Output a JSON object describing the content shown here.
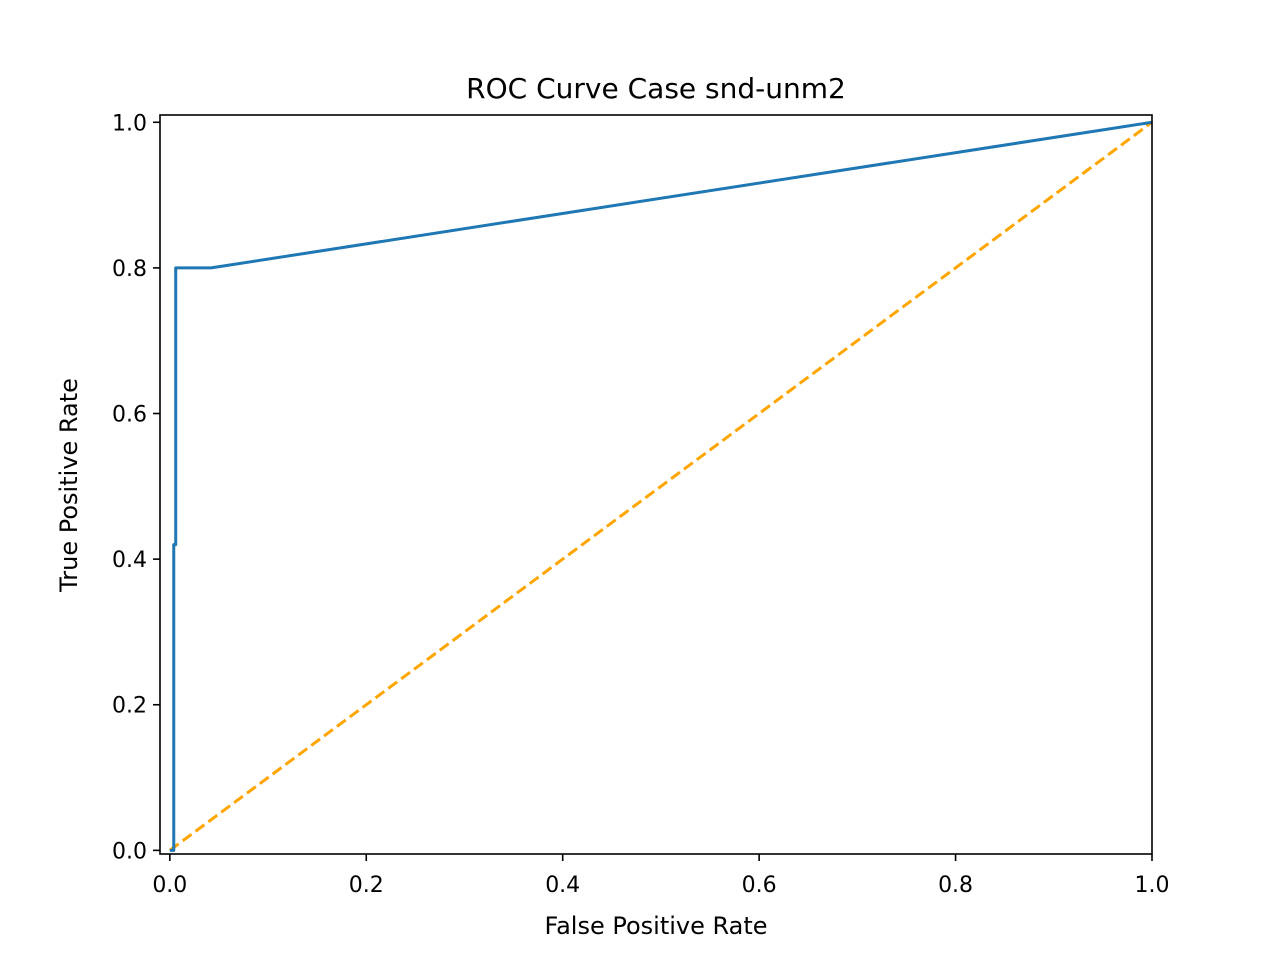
{
  "chart_data": {
    "type": "line",
    "title": "ROC Curve Case snd-unm2",
    "xlabel": "False Positive Rate",
    "ylabel": "True Positive Rate",
    "xlim": [
      -0.01,
      1.0
    ],
    "ylim": [
      -0.005,
      1.01
    ],
    "xticks": [
      0.0,
      0.2,
      0.4,
      0.6,
      0.8,
      1.0
    ],
    "xtick_labels": [
      "0.0",
      "0.2",
      "0.4",
      "0.6",
      "0.8",
      "1.0"
    ],
    "yticks": [
      0.0,
      0.2,
      0.4,
      0.6,
      0.8,
      1.0
    ],
    "ytick_labels": [
      "0.0",
      "0.2",
      "0.4",
      "0.6",
      "0.8",
      "1.0"
    ],
    "grid": false,
    "series": [
      {
        "name": "ROC curve",
        "color": "#1f77b4",
        "style": "solid",
        "x": [
          0.0,
          0.004,
          0.004,
          0.006,
          0.006,
          0.042,
          1.0
        ],
        "y": [
          0.0,
          0.0,
          0.42,
          0.42,
          0.8,
          0.8,
          1.0
        ]
      },
      {
        "name": "chance line",
        "color": "#ffa500",
        "style": "dashed",
        "x": [
          0.0,
          1.0
        ],
        "y": [
          0.0,
          1.0
        ]
      }
    ]
  }
}
